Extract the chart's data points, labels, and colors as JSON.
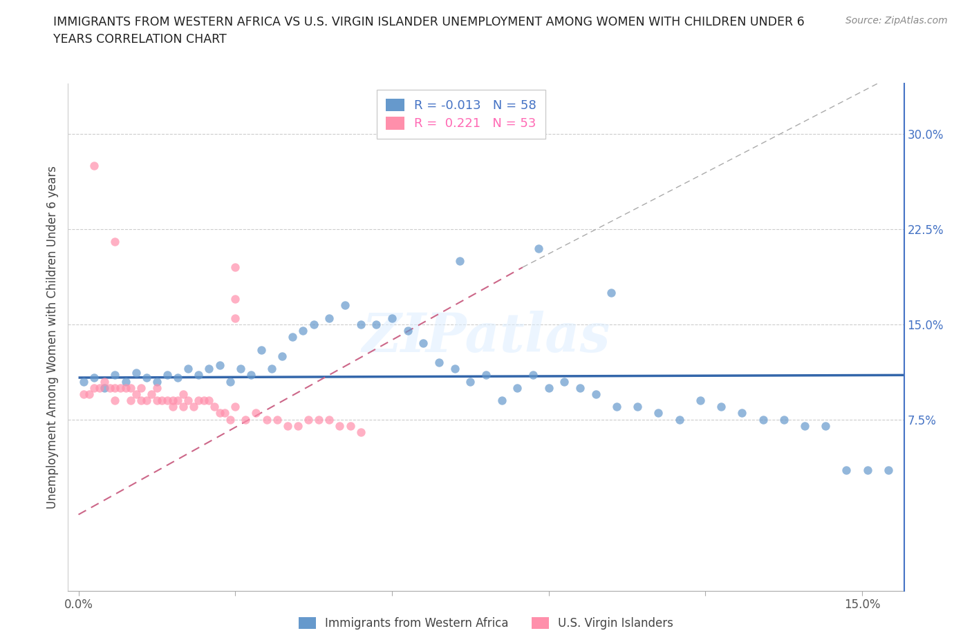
{
  "title": "IMMIGRANTS FROM WESTERN AFRICA VS U.S. VIRGIN ISLANDER UNEMPLOYMENT AMONG WOMEN WITH CHILDREN UNDER 6\nYEARS CORRELATION CHART",
  "source": "Source: ZipAtlas.com",
  "ylabel": "Unemployment Among Women with Children Under 6 years",
  "xlim": [
    -0.002,
    0.158
  ],
  "ylim": [
    -0.06,
    0.34
  ],
  "color_blue": "#6699CC",
  "color_pink": "#FF8FAB",
  "watermark": "ZIPatlas",
  "blue_x": [
    0.001,
    0.003,
    0.005,
    0.007,
    0.009,
    0.011,
    0.013,
    0.015,
    0.017,
    0.019,
    0.021,
    0.023,
    0.025,
    0.027,
    0.029,
    0.031,
    0.033,
    0.035,
    0.037,
    0.039,
    0.041,
    0.043,
    0.045,
    0.048,
    0.051,
    0.054,
    0.057,
    0.06,
    0.063,
    0.066,
    0.069,
    0.072,
    0.075,
    0.078,
    0.081,
    0.084,
    0.087,
    0.09,
    0.093,
    0.096,
    0.099,
    0.103,
    0.107,
    0.111,
    0.115,
    0.119,
    0.123,
    0.127,
    0.131,
    0.135,
    0.139,
    0.143,
    0.147,
    0.151,
    0.155,
    0.073,
    0.088,
    0.102
  ],
  "blue_y": [
    0.105,
    0.108,
    0.1,
    0.11,
    0.105,
    0.112,
    0.108,
    0.105,
    0.11,
    0.108,
    0.115,
    0.11,
    0.115,
    0.118,
    0.105,
    0.115,
    0.11,
    0.13,
    0.115,
    0.125,
    0.14,
    0.145,
    0.15,
    0.155,
    0.165,
    0.15,
    0.15,
    0.155,
    0.145,
    0.135,
    0.12,
    0.115,
    0.105,
    0.11,
    0.09,
    0.1,
    0.11,
    0.1,
    0.105,
    0.1,
    0.095,
    0.085,
    0.085,
    0.08,
    0.075,
    0.09,
    0.085,
    0.08,
    0.075,
    0.075,
    0.07,
    0.07,
    0.035,
    0.035,
    0.035,
    0.2,
    0.21,
    0.175
  ],
  "pink_x": [
    0.001,
    0.002,
    0.003,
    0.004,
    0.005,
    0.006,
    0.007,
    0.007,
    0.008,
    0.009,
    0.01,
    0.01,
    0.011,
    0.012,
    0.012,
    0.013,
    0.014,
    0.015,
    0.015,
    0.016,
    0.017,
    0.018,
    0.018,
    0.019,
    0.02,
    0.02,
    0.021,
    0.022,
    0.023,
    0.024,
    0.025,
    0.026,
    0.027,
    0.028,
    0.029,
    0.03,
    0.032,
    0.034,
    0.036,
    0.038,
    0.04,
    0.042,
    0.044,
    0.046,
    0.048,
    0.05,
    0.052,
    0.054,
    0.03,
    0.03,
    0.03,
    0.007,
    0.003
  ],
  "pink_y": [
    0.095,
    0.095,
    0.1,
    0.1,
    0.105,
    0.1,
    0.1,
    0.09,
    0.1,
    0.1,
    0.1,
    0.09,
    0.095,
    0.09,
    0.1,
    0.09,
    0.095,
    0.09,
    0.1,
    0.09,
    0.09,
    0.09,
    0.085,
    0.09,
    0.095,
    0.085,
    0.09,
    0.085,
    0.09,
    0.09,
    0.09,
    0.085,
    0.08,
    0.08,
    0.075,
    0.085,
    0.075,
    0.08,
    0.075,
    0.075,
    0.07,
    0.07,
    0.075,
    0.075,
    0.075,
    0.07,
    0.07,
    0.065,
    0.155,
    0.17,
    0.195,
    0.215,
    0.275
  ],
  "blue_trend_x": [
    0.0,
    0.158
  ],
  "blue_trend_y": [
    0.108,
    0.11
  ],
  "pink_trend_x0": 0.0,
  "pink_trend_y0": 0.0,
  "pink_trend_x1": 0.085,
  "pink_trend_y1": 0.195
}
